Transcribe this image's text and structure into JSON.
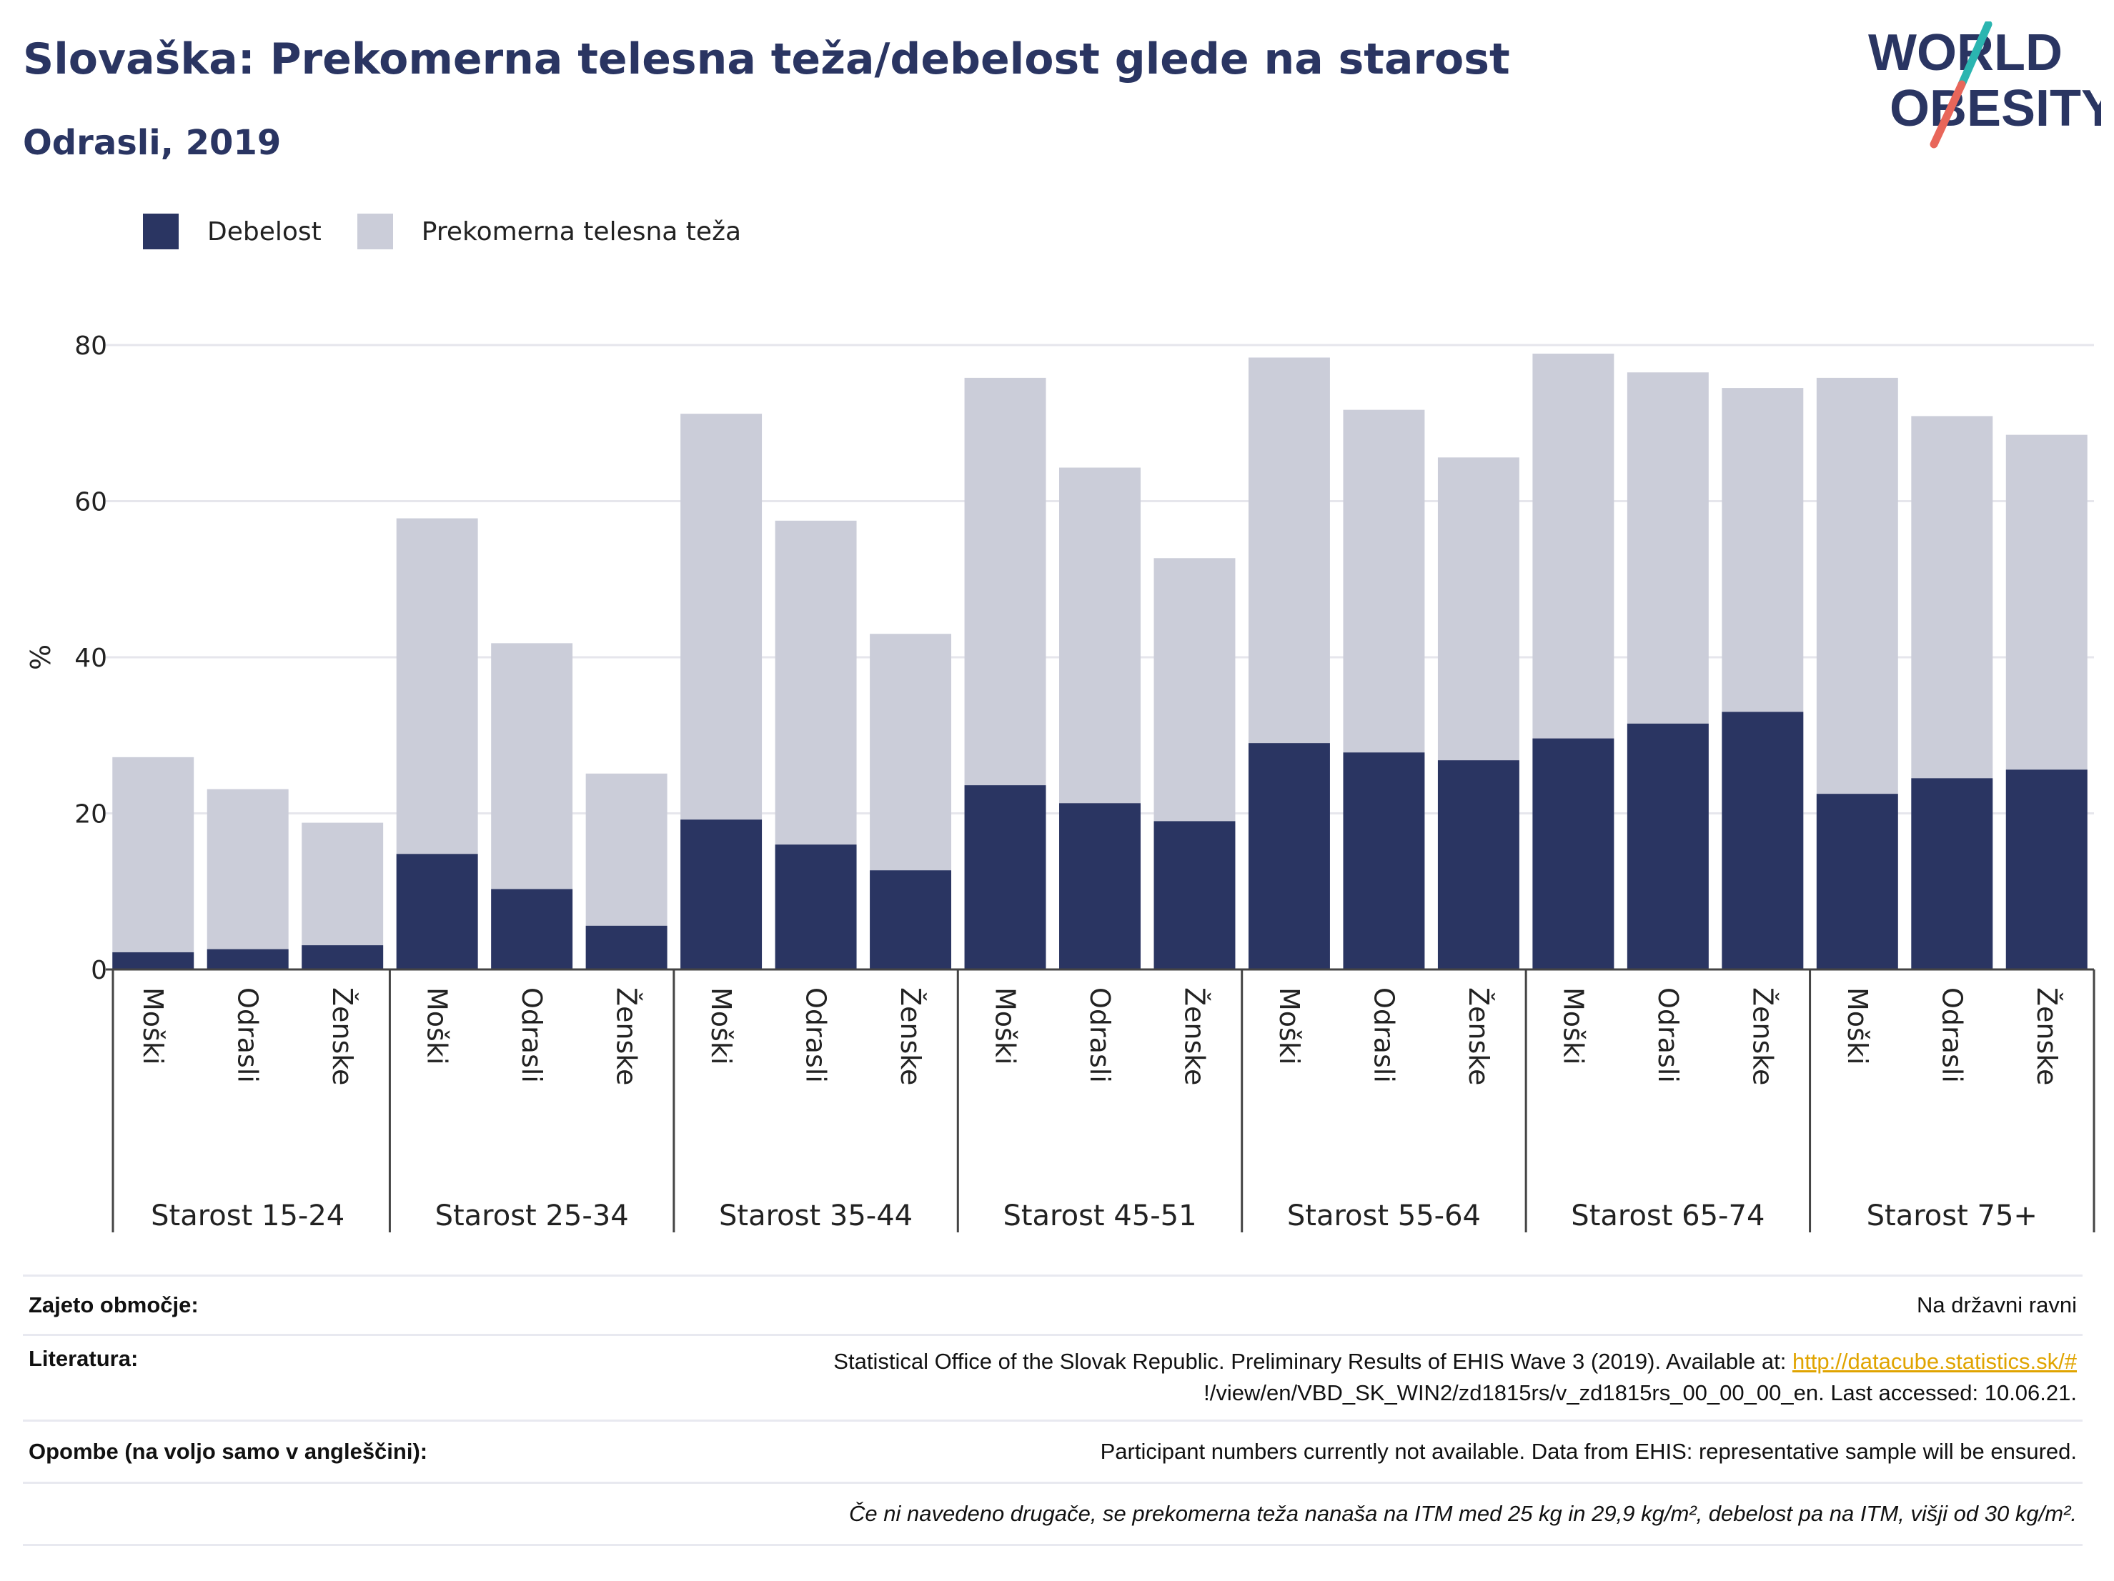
{
  "header": {
    "title": "Slovaška: Prekomerna telesna teža/debelost glede na starost",
    "subtitle": "Odrasli, 2019"
  },
  "logo": {
    "line1": "WORLD",
    "line2": "OBESITY",
    "colors": {
      "text": "#2a3562",
      "slash_top": "#2bb5b0",
      "slash_bottom": "#e8665a"
    }
  },
  "legend": {
    "items": [
      {
        "label": "Debelost",
        "color": "#2a3562"
      },
      {
        "label": "Prekomerna telesna teža",
        "color": "#cbcdd9"
      }
    ]
  },
  "chart_data": {
    "type": "bar",
    "stacked": "overlay",
    "ylabel": "%",
    "ylim": [
      0,
      80
    ],
    "yticks": [
      0,
      20,
      40,
      60,
      80
    ],
    "grid": true,
    "legend_position": "top-left",
    "groups": [
      "Starost 15-24",
      "Starost 25-34",
      "Starost 35-44",
      "Starost 45-51",
      "Starost 55-64",
      "Starost 65-74",
      "Starost 75+"
    ],
    "subcategories": [
      "Moški",
      "Odrasli",
      "Ženske"
    ],
    "series": [
      {
        "name": "Debelost",
        "color": "#2a3562",
        "values": [
          2.2,
          2.6,
          3.1,
          14.8,
          10.3,
          5.6,
          19.2,
          16.0,
          12.7,
          23.6,
          21.3,
          19.0,
          29.0,
          27.8,
          26.8,
          29.6,
          31.5,
          33.0,
          22.5,
          24.5,
          25.6
        ]
      },
      {
        "name": "Prekomerna telesna teža",
        "color": "#cbcdd9",
        "values": [
          27.2,
          23.1,
          18.8,
          57.8,
          41.8,
          25.1,
          71.2,
          57.5,
          43.0,
          75.8,
          64.3,
          52.7,
          78.4,
          71.7,
          65.6,
          78.9,
          76.5,
          74.5,
          75.8,
          70.9,
          68.5
        ]
      }
    ]
  },
  "footer": {
    "rows": [
      {
        "label": "Zajeto območje:",
        "value": "Na državni ravni"
      },
      {
        "label": "Literatura:",
        "value_prefix": "Statistical Office of the Slovak Republic. Preliminary Results of EHIS Wave 3 (2019). Available at: ",
        "link": "http://datacube.statistics.sk/#",
        "value_suffix": "!/view/en/VBD_SK_WIN2/zd1815rs/v_zd1815rs_00_00_00_en. Last accessed: 10.06.21."
      },
      {
        "label": "Opombe (na voljo samo v angleščini):",
        "value": "Participant numbers currently not available. Data from EHIS: representative sample will be ensured."
      }
    ],
    "note": "Če ni navedeno drugače, se prekomerna teža nanaša na ITM med 25 kg in 29,9 kg/m², debelost pa na ITM, višji od 30 kg/m²."
  }
}
